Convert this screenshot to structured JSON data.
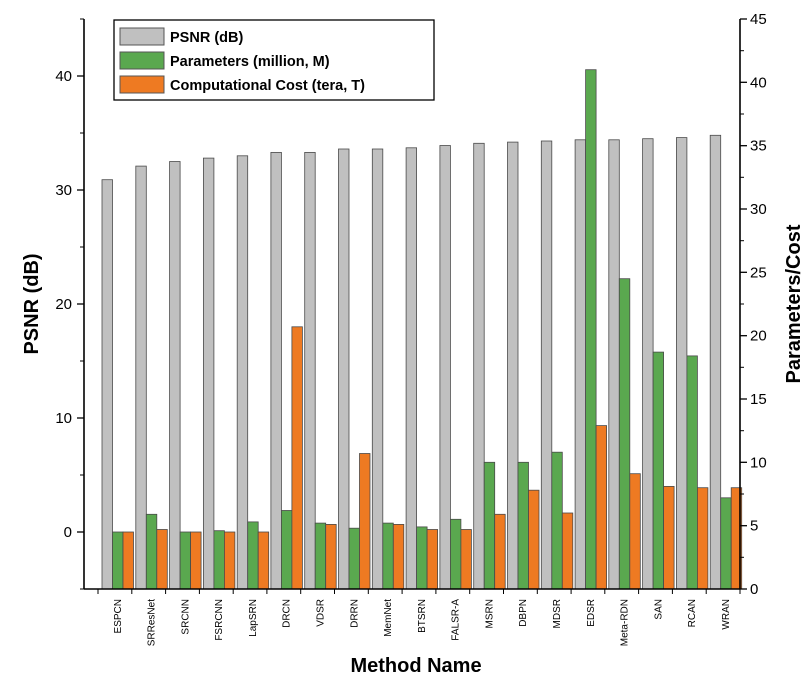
{
  "chart_data": {
    "type": "bar",
    "xlabel": "Method Name",
    "ylabel_left": "PSNR (dB)",
    "ylabel_right": "Parameters/Cost",
    "ylim_left": [
      -5,
      45
    ],
    "ylim_right": [
      0,
      45
    ],
    "yticks_left": [
      "0",
      "10",
      "20",
      "30",
      "40"
    ],
    "yticks_right": [
      "0",
      "5",
      "10",
      "15",
      "20",
      "25",
      "30",
      "35",
      "40",
      "45"
    ],
    "categories": [
      "ESPCN",
      "SRResNet",
      "SRCNN",
      "FSRCNN",
      "LapSRN",
      "DRCN",
      "VDSR",
      "DRRN",
      "MemNet",
      "BTSRN",
      "FALSR-A",
      "MSRN",
      "DBPN",
      "MDSR",
      "EDSR",
      "Meta-RDN",
      "SAN",
      "RCAN",
      "WRAN"
    ],
    "legend_position": "top-left",
    "grid": false,
    "series": [
      {
        "name": "PSNR (dB)",
        "axis": "left",
        "color": "#c0c0c0",
        "values": [
          30.9,
          32.1,
          32.5,
          32.8,
          33.0,
          33.3,
          33.3,
          33.6,
          33.6,
          33.7,
          33.9,
          34.1,
          34.2,
          34.3,
          34.4,
          34.4,
          34.5,
          34.6,
          34.8
        ]
      },
      {
        "name": "Parameters (million, M)",
        "axis": "right",
        "color": "#5aa84f",
        "values": [
          4.5,
          5.9,
          4.5,
          4.6,
          5.3,
          6.2,
          5.2,
          4.8,
          5.2,
          4.9,
          5.5,
          10.0,
          10.0,
          10.8,
          41.0,
          24.5,
          18.7,
          18.4,
          7.2
        ]
      },
      {
        "name": "Computational Cost (tera, T)",
        "axis": "right",
        "color": "#ee7a22",
        "values": [
          4.5,
          4.7,
          4.5,
          4.5,
          4.5,
          20.7,
          5.1,
          10.7,
          5.1,
          4.7,
          4.7,
          5.9,
          7.8,
          6.0,
          12.9,
          9.1,
          8.1,
          8.0,
          8.0
        ]
      }
    ]
  }
}
